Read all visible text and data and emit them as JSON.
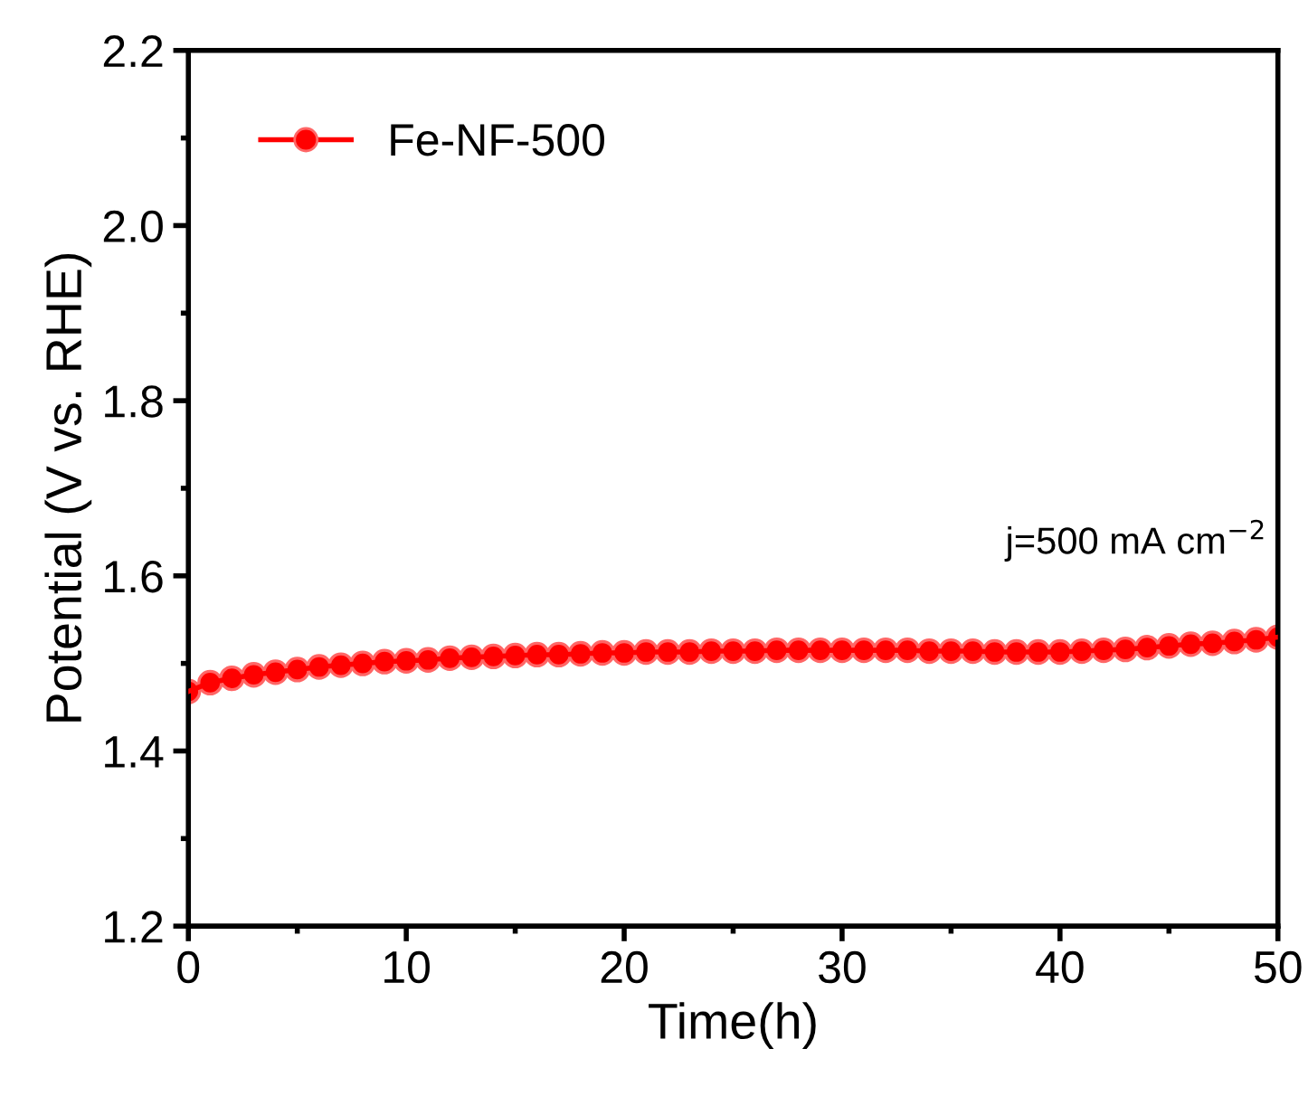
{
  "chart_data": {
    "type": "line",
    "xlabel": "Time(h)",
    "ylabel": "Potential (V vs. RHE)",
    "xlim": [
      0,
      50
    ],
    "xticks": [
      0,
      10,
      20,
      30,
      40,
      50
    ],
    "ylim": [
      1.2,
      2.2
    ],
    "yticks": [
      {
        "value": 1.2,
        "label": "1.2"
      },
      {
        "value": 1.4,
        "label": "1.4"
      },
      {
        "value": 1.6,
        "label": "1.6"
      },
      {
        "value": 1.8,
        "label": "1.8"
      },
      {
        "value": 2.0,
        "label": "2.0"
      },
      {
        "value": 2.2,
        "label": "2.2"
      }
    ],
    "marker": "circle",
    "line_style": "solid",
    "legend": "top left",
    "grid": false,
    "annotations": [
      "j=500 mA cm$^{−2}$"
    ],
    "series": [
      {
        "name": "Fe-NF-500",
        "color": "#ff0000",
        "x": [
          0,
          1,
          2,
          3,
          4,
          5,
          6,
          7,
          8,
          9,
          10,
          11,
          12,
          13,
          14,
          15,
          16,
          17,
          18,
          19,
          20,
          21,
          22,
          23,
          24,
          25,
          26,
          27,
          28,
          29,
          30,
          31,
          32,
          33,
          34,
          35,
          36,
          37,
          38,
          39,
          40,
          41,
          42,
          43,
          44,
          45,
          46,
          47,
          48,
          49,
          50
        ],
        "values": [
          1.468,
          1.478,
          1.483,
          1.487,
          1.49,
          1.493,
          1.496,
          1.498,
          1.5,
          1.502,
          1.503,
          1.504,
          1.506,
          1.507,
          1.508,
          1.509,
          1.51,
          1.51,
          1.511,
          1.512,
          1.512,
          1.513,
          1.513,
          1.513,
          1.514,
          1.514,
          1.514,
          1.515,
          1.515,
          1.515,
          1.515,
          1.515,
          1.515,
          1.515,
          1.514,
          1.514,
          1.514,
          1.513,
          1.513,
          1.513,
          1.513,
          1.514,
          1.515,
          1.516,
          1.518,
          1.52,
          1.522,
          1.523,
          1.525,
          1.527,
          1.53
        ]
      }
    ]
  }
}
